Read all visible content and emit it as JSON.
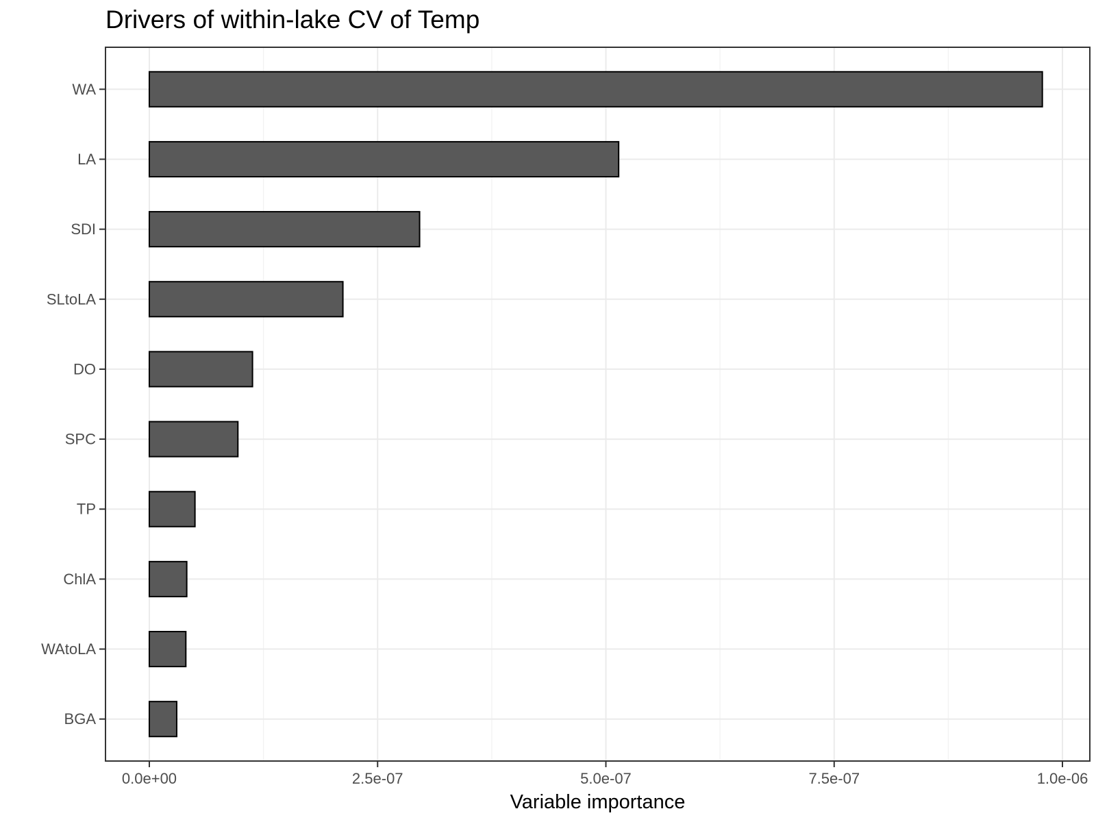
{
  "chart_data": {
    "type": "bar",
    "orientation": "horizontal",
    "title": "Drivers of within-lake CV of Temp",
    "xlabel": "Variable importance",
    "ylabel": "",
    "categories": [
      "WA",
      "LA",
      "SDI",
      "SLtoLA",
      "DO",
      "SPC",
      "TP",
      "ChlA",
      "WAtoLA",
      "BGA"
    ],
    "values": [
      9.78e-07,
      5.14e-07,
      2.96e-07,
      2.12e-07,
      1.13e-07,
      9.7e-08,
      5e-08,
      4.1e-08,
      4e-08,
      3e-08
    ],
    "xlim": [
      -4.8e-08,
      1.03e-06
    ],
    "xticks": [
      0,
      2.5e-07,
      5e-07,
      7.5e-07,
      1e-06
    ],
    "xtick_labels": [
      "0.0e+00",
      "2.5e-07",
      "5.0e-07",
      "7.5e-07",
      "1.0e-06"
    ],
    "grid": true,
    "legend": "none",
    "colors": {
      "bar_fill": "#595959",
      "bar_stroke": "#000000",
      "grid_major": "#ebebeb",
      "grid_minor": "#f2f2f2",
      "panel_border": "#333333",
      "tick_text": "#4d4d4d"
    }
  }
}
